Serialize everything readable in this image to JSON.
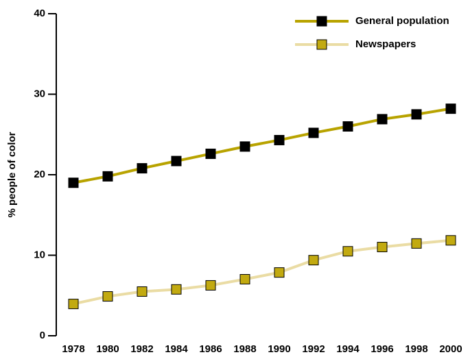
{
  "chart_data": {
    "type": "line",
    "ylabel": "% people of color",
    "categories": [
      "1978",
      "1980",
      "1982",
      "1984",
      "1986",
      "1988",
      "1990",
      "1992",
      "1994",
      "1996",
      "1998",
      "2000"
    ],
    "series": [
      {
        "name": "General population",
        "color": "#b8a300",
        "marker_color": "#000000",
        "values": [
          19.0,
          19.8,
          20.8,
          21.7,
          22.6,
          23.5,
          24.3,
          25.2,
          26.0,
          26.9,
          27.5,
          28.2
        ]
      },
      {
        "name": "Newspapers",
        "color": "#eadca4",
        "marker_color": "#c2aa10",
        "values": [
          3.95,
          4.89,
          5.49,
          5.76,
          6.26,
          7.02,
          7.86,
          9.39,
          10.49,
          11.02,
          11.46,
          11.85
        ]
      }
    ],
    "ylim": [
      0,
      40
    ],
    "yticks": [
      0,
      10,
      20,
      30,
      40
    ],
    "legend": "top-right"
  }
}
